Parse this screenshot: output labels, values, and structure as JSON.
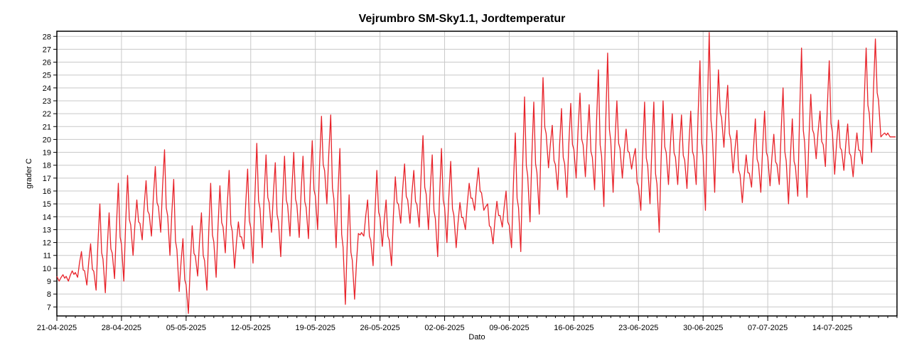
{
  "chart_data": {
    "type": "line",
    "title": "Vejrumbro SM-Sky1.1, Jordtemperatur",
    "xlabel": "Dato",
    "ylabel": "grader C",
    "x_ticks": [
      "21-04-2025",
      "28-04-2025",
      "05-05-2025",
      "12-05-2025",
      "19-05-2025",
      "26-05-2025",
      "02-06-2025",
      "09-06-2025",
      "16-06-2025",
      "23-06-2025",
      "30-06-2025",
      "07-07-2025",
      "14-07-2025"
    ],
    "y_ticks": [
      7,
      8,
      9,
      10,
      11,
      12,
      13,
      14,
      15,
      16,
      17,
      18,
      19,
      20,
      21,
      22,
      23,
      24,
      25,
      26,
      27,
      28
    ],
    "xlim": [
      "2025-04-21",
      "2025-07-21"
    ],
    "ylim": [
      6.3,
      28.4
    ],
    "grid": true,
    "line_color": "#e8232a",
    "series": [
      {
        "x": [
          "2025-04-21",
          "2025-04-22",
          "2025-04-23",
          "2025-04-24",
          "2025-04-25",
          "2025-04-26",
          "2025-04-27",
          "2025-04-28",
          "2025-04-29",
          "2025-04-30",
          "2025-05-01",
          "2025-05-02",
          "2025-05-03",
          "2025-05-04",
          "2025-05-05",
          "2025-05-06",
          "2025-05-07",
          "2025-05-08",
          "2025-05-09",
          "2025-05-10",
          "2025-05-11",
          "2025-05-12",
          "2025-05-13",
          "2025-05-14",
          "2025-05-15",
          "2025-05-16",
          "2025-05-17",
          "2025-05-18",
          "2025-05-19",
          "2025-05-20",
          "2025-05-21",
          "2025-05-22",
          "2025-05-23",
          "2025-05-24",
          "2025-05-25",
          "2025-05-26",
          "2025-05-27",
          "2025-05-28",
          "2025-05-29",
          "2025-05-30",
          "2025-05-31",
          "2025-06-01",
          "2025-06-02",
          "2025-06-03",
          "2025-06-04",
          "2025-06-05",
          "2025-06-06",
          "2025-06-07",
          "2025-06-08",
          "2025-06-09",
          "2025-06-10",
          "2025-06-11",
          "2025-06-12",
          "2025-06-13",
          "2025-06-14",
          "2025-06-15",
          "2025-06-16",
          "2025-06-17",
          "2025-06-18",
          "2025-06-19",
          "2025-06-20",
          "2025-06-21",
          "2025-06-22",
          "2025-06-23",
          "2025-06-24",
          "2025-06-25",
          "2025-06-26",
          "2025-06-27",
          "2025-06-28",
          "2025-06-29",
          "2025-06-30",
          "2025-07-01",
          "2025-07-02",
          "2025-07-03",
          "2025-07-04",
          "2025-07-05",
          "2025-07-06",
          "2025-07-07",
          "2025-07-08",
          "2025-07-09",
          "2025-07-10",
          "2025-07-11",
          "2025-07-12",
          "2025-07-13",
          "2025-07-14",
          "2025-07-15",
          "2025-07-16",
          "2025-07-17",
          "2025-07-18",
          "2025-07-19",
          "2025-07-20"
        ],
        "min": [
          9.0,
          9.0,
          9.3,
          8.7,
          8.3,
          8.1,
          9.2,
          9.0,
          11.0,
          12.2,
          12.5,
          12.8,
          11.0,
          8.2,
          6.5,
          9.4,
          8.3,
          9.3,
          11.2,
          10.0,
          11.5,
          10.4,
          11.6,
          12.8,
          10.9,
          12.5,
          12.4,
          12.3,
          13.0,
          15.0,
          11.6,
          7.2,
          7.6,
          12.5,
          10.2,
          11.7,
          10.2,
          13.5,
          13.5,
          13.2,
          13.0,
          10.9,
          12.0,
          11.6,
          13.0,
          14.5,
          14.5,
          11.9,
          13.2,
          11.6,
          11.3,
          13.6,
          14.2,
          17.8,
          16.1,
          15.5,
          17.0,
          17.1,
          16.1,
          14.8,
          15.9,
          17.0,
          17.7,
          14.5,
          15.0,
          12.8,
          16.5,
          16.5,
          16.2,
          16.5,
          14.5,
          15.9,
          19.4,
          17.4,
          15.1,
          16.3,
          15.9,
          16.4,
          16.5,
          15.0,
          15.6,
          15.5,
          18.5,
          17.9,
          17.3,
          17.6,
          17.1,
          18.1,
          19.0,
          20.2,
          20.2
        ],
        "max": [
          9.5,
          9.8,
          11.3,
          11.9,
          15.0,
          14.3,
          16.6,
          17.2,
          15.3,
          16.8,
          17.9,
          19.2,
          16.9,
          12.3,
          13.3,
          14.3,
          16.6,
          16.4,
          17.6,
          13.6,
          17.7,
          19.7,
          18.8,
          18.2,
          18.7,
          19.0,
          18.7,
          19.9,
          21.8,
          21.9,
          19.3,
          15.7,
          12.7,
          15.3,
          17.6,
          15.3,
          17.1,
          18.1,
          17.6,
          20.3,
          18.8,
          19.3,
          18.3,
          15.1,
          16.6,
          17.8,
          15.0,
          15.2,
          16.0,
          20.5,
          23.3,
          22.9,
          24.8,
          21.1,
          22.4,
          22.8,
          23.6,
          22.7,
          25.4,
          26.7,
          23.0,
          20.8,
          19.3,
          22.9,
          22.9,
          23.0,
          22.0,
          21.9,
          22.2,
          26.1,
          28.3,
          25.4,
          24.2,
          20.7,
          18.8,
          21.6,
          22.2,
          20.4,
          24.0,
          21.6,
          27.1,
          23.5,
          22.2,
          26.1,
          21.5,
          21.2,
          20.5,
          27.1,
          27.8,
          20.5,
          20.2
        ]
      }
    ]
  }
}
